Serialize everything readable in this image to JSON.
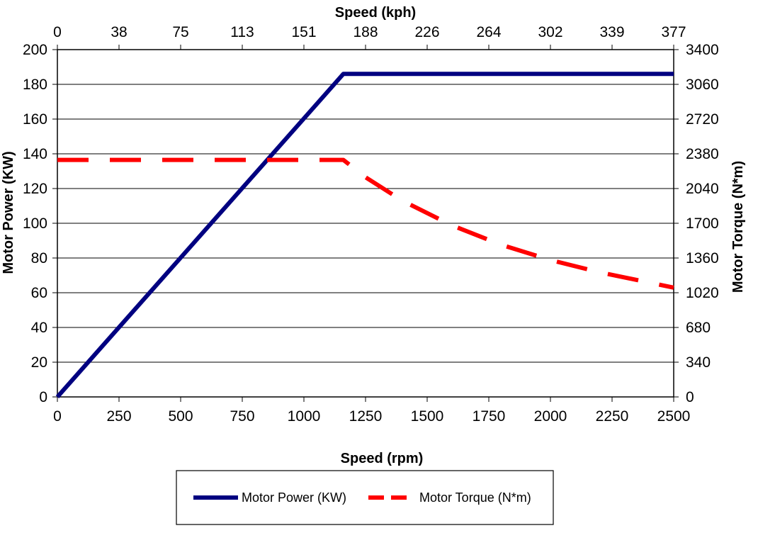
{
  "chart_data": {
    "type": "line",
    "title": "",
    "x_axis_bottom": {
      "label": "Speed (rpm)",
      "range": [
        0,
        2500
      ],
      "ticks": [
        0,
        250,
        500,
        750,
        1000,
        1250,
        1500,
        1750,
        2000,
        2250,
        2500
      ]
    },
    "x_axis_top": {
      "label": "Speed (kph)",
      "range": [
        0,
        377
      ],
      "ticks": [
        "0",
        "38",
        "75",
        "113",
        "151",
        "188",
        "226",
        "264",
        "302",
        "339",
        "377"
      ]
    },
    "y_axis_left": {
      "label": "Motor Power (KW)",
      "range": [
        0,
        200
      ],
      "ticks": [
        0,
        20,
        40,
        60,
        80,
        100,
        120,
        140,
        160,
        180,
        200
      ]
    },
    "y_axis_right": {
      "label": "Motor Torque (N*m)",
      "range": [
        0,
        3400
      ],
      "ticks": [
        0,
        340,
        680,
        1020,
        1360,
        1700,
        2040,
        2380,
        2720,
        3060,
        3400
      ]
    },
    "grid": "horizontal",
    "legend_position": "bottom",
    "series": [
      {
        "name": "Motor Power (KW)",
        "axis": "left",
        "color": "#000080",
        "style": "solid",
        "x": [
          0,
          1160,
          2500
        ],
        "y": [
          0,
          186,
          186
        ]
      },
      {
        "name": "Motor Torque (N*m)",
        "axis": "right",
        "color": "#FF0000",
        "style": "dashed",
        "x": [
          0,
          1160,
          1250,
          1400,
          1600,
          1800,
          2000,
          2200,
          2400,
          2500
        ],
        "y": [
          2320,
          2320,
          2150,
          1920,
          1680,
          1490,
          1340,
          1220,
          1120,
          1070
        ]
      }
    ]
  }
}
